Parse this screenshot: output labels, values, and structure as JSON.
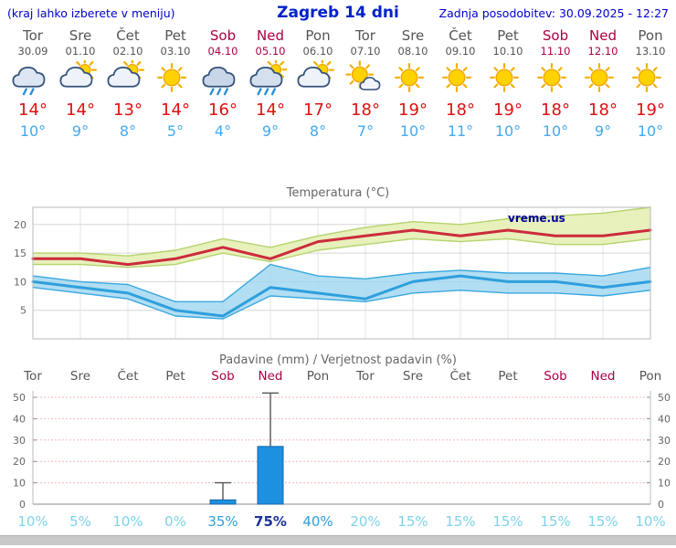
{
  "header": {
    "hint": "(kraj lahko izberete v meniju)",
    "title": "Zagreb 14 dni",
    "updated": "Zadnja posodobitev: 30.09.2025 - 12:27"
  },
  "days": [
    {
      "name": "Tor",
      "date": "30.09",
      "icon": "showers",
      "high": "14°",
      "low": "10°",
      "weekend": false
    },
    {
      "name": "Sre",
      "date": "01.10",
      "icon": "sun-cloud",
      "high": "14°",
      "low": "9°",
      "weekend": false
    },
    {
      "name": "Čet",
      "date": "02.10",
      "icon": "sun-cloud",
      "high": "13°",
      "low": "8°",
      "weekend": false
    },
    {
      "name": "Pet",
      "date": "03.10",
      "icon": "sunny",
      "high": "14°",
      "low": "5°",
      "weekend": false
    },
    {
      "name": "Sob",
      "date": "04.10",
      "icon": "rain",
      "high": "16°",
      "low": "4°",
      "weekend": true
    },
    {
      "name": "Ned",
      "date": "05.10",
      "icon": "rain-sun",
      "high": "14°",
      "low": "9°",
      "weekend": true
    },
    {
      "name": "Pon",
      "date": "06.10",
      "icon": "sun-cloud",
      "high": "17°",
      "low": "8°",
      "weekend": false
    },
    {
      "name": "Tor",
      "date": "07.10",
      "icon": "mostly-sunny",
      "high": "18°",
      "low": "7°",
      "weekend": false
    },
    {
      "name": "Sre",
      "date": "08.10",
      "icon": "sunny",
      "high": "19°",
      "low": "10°",
      "weekend": false
    },
    {
      "name": "Čet",
      "date": "09.10",
      "icon": "sunny",
      "high": "18°",
      "low": "11°",
      "weekend": false
    },
    {
      "name": "Pet",
      "date": "10.10",
      "icon": "sunny",
      "high": "19°",
      "low": "10°",
      "weekend": false
    },
    {
      "name": "Sob",
      "date": "11.10",
      "icon": "sunny",
      "high": "18°",
      "low": "10°",
      "weekend": true
    },
    {
      "name": "Ned",
      "date": "12.10",
      "icon": "sunny",
      "high": "18°",
      "low": "9°",
      "weekend": true
    },
    {
      "name": "Pon",
      "date": "13.10",
      "icon": "sunny",
      "high": "19°",
      "low": "10°",
      "weekend": false
    }
  ],
  "chart_data": [
    {
      "type": "line",
      "title": "Temperatura (°C)",
      "categories": [
        "30.09",
        "01.10",
        "02.10",
        "03.10",
        "04.10",
        "05.10",
        "06.10",
        "07.10",
        "08.10",
        "09.10",
        "10.10",
        "11.10",
        "12.10",
        "13.10"
      ],
      "ylim": [
        0,
        23
      ],
      "yticks": [
        5,
        10,
        15,
        20
      ],
      "watermark": "vreme.us",
      "series": [
        {
          "name": "max_temp",
          "values": [
            14,
            14,
            13,
            14,
            16,
            14,
            17,
            18,
            19,
            18,
            19,
            18,
            18,
            19
          ]
        },
        {
          "name": "min_temp",
          "values": [
            10,
            9,
            8,
            5,
            4,
            9,
            8,
            7,
            10,
            11,
            10,
            10,
            9,
            10
          ]
        },
        {
          "name": "max_range_upper",
          "values": [
            15,
            15,
            14.5,
            15.5,
            17.5,
            16,
            18,
            19.5,
            20.5,
            20,
            21,
            21.5,
            22,
            23
          ]
        },
        {
          "name": "max_range_lower",
          "values": [
            13,
            13,
            12.5,
            13,
            15,
            13.5,
            15.5,
            16.5,
            17.5,
            17,
            17.5,
            16.5,
            16.5,
            17.5
          ]
        },
        {
          "name": "min_range_upper",
          "values": [
            11,
            10,
            9.5,
            6.5,
            6.5,
            13,
            11,
            10.5,
            11.5,
            12,
            11.5,
            11.5,
            11,
            12.5
          ]
        },
        {
          "name": "min_range_lower",
          "values": [
            9,
            8,
            7,
            4,
            3.5,
            7.5,
            7,
            6.5,
            8,
            8.5,
            8,
            8,
            7.5,
            8.5
          ]
        }
      ]
    },
    {
      "type": "bar",
      "title": "Padavine (mm) / Verjetnost padavin (%)",
      "categories": [
        "Tor",
        "Sre",
        "Čet",
        "Pet",
        "Sob",
        "Ned",
        "Pon",
        "Tor",
        "Sre",
        "Čet",
        "Pet",
        "Sob",
        "Ned",
        "Pon"
      ],
      "weekend": [
        false,
        false,
        false,
        false,
        true,
        true,
        false,
        false,
        false,
        false,
        false,
        true,
        true,
        false
      ],
      "precip_mm": [
        0,
        0,
        0,
        0,
        2,
        27,
        0,
        0,
        0,
        0,
        0,
        0,
        0,
        0
      ],
      "precip_max_mm": [
        0,
        0,
        0,
        0,
        10,
        52,
        0,
        0,
        0,
        0,
        0,
        0,
        0,
        0
      ],
      "probabilities": [
        "10%",
        "5%",
        "10%",
        "0%",
        "35%",
        "75%",
        "40%",
        "20%",
        "15%",
        "15%",
        "15%",
        "15%",
        "15%",
        "10%"
      ],
      "ylim": [
        0,
        53
      ],
      "yticks": [
        0,
        10,
        20,
        30,
        40,
        50
      ]
    }
  ],
  "colors": {
    "header_blue": "#0000cc",
    "title_blue": "#0022cc",
    "weekday": "#555555",
    "weekend": "#aa0044",
    "high_temp": "#dd1111",
    "low_temp": "#44aaee",
    "max_line": "#cc2b3c",
    "min_line": "#2f9fdc",
    "max_band": "#e8f0bc",
    "max_band_edge": "#b5d36e",
    "min_band": "#9fd6f0",
    "min_band_edge": "#3aa7e0",
    "bar_fill": "#1e90e0",
    "bar_edge": "#1566a8",
    "prob_low": "#7dd3ea",
    "prob_mid": "#2f9fdc",
    "prob_high": "#1b3399",
    "watermark": "#000099"
  }
}
